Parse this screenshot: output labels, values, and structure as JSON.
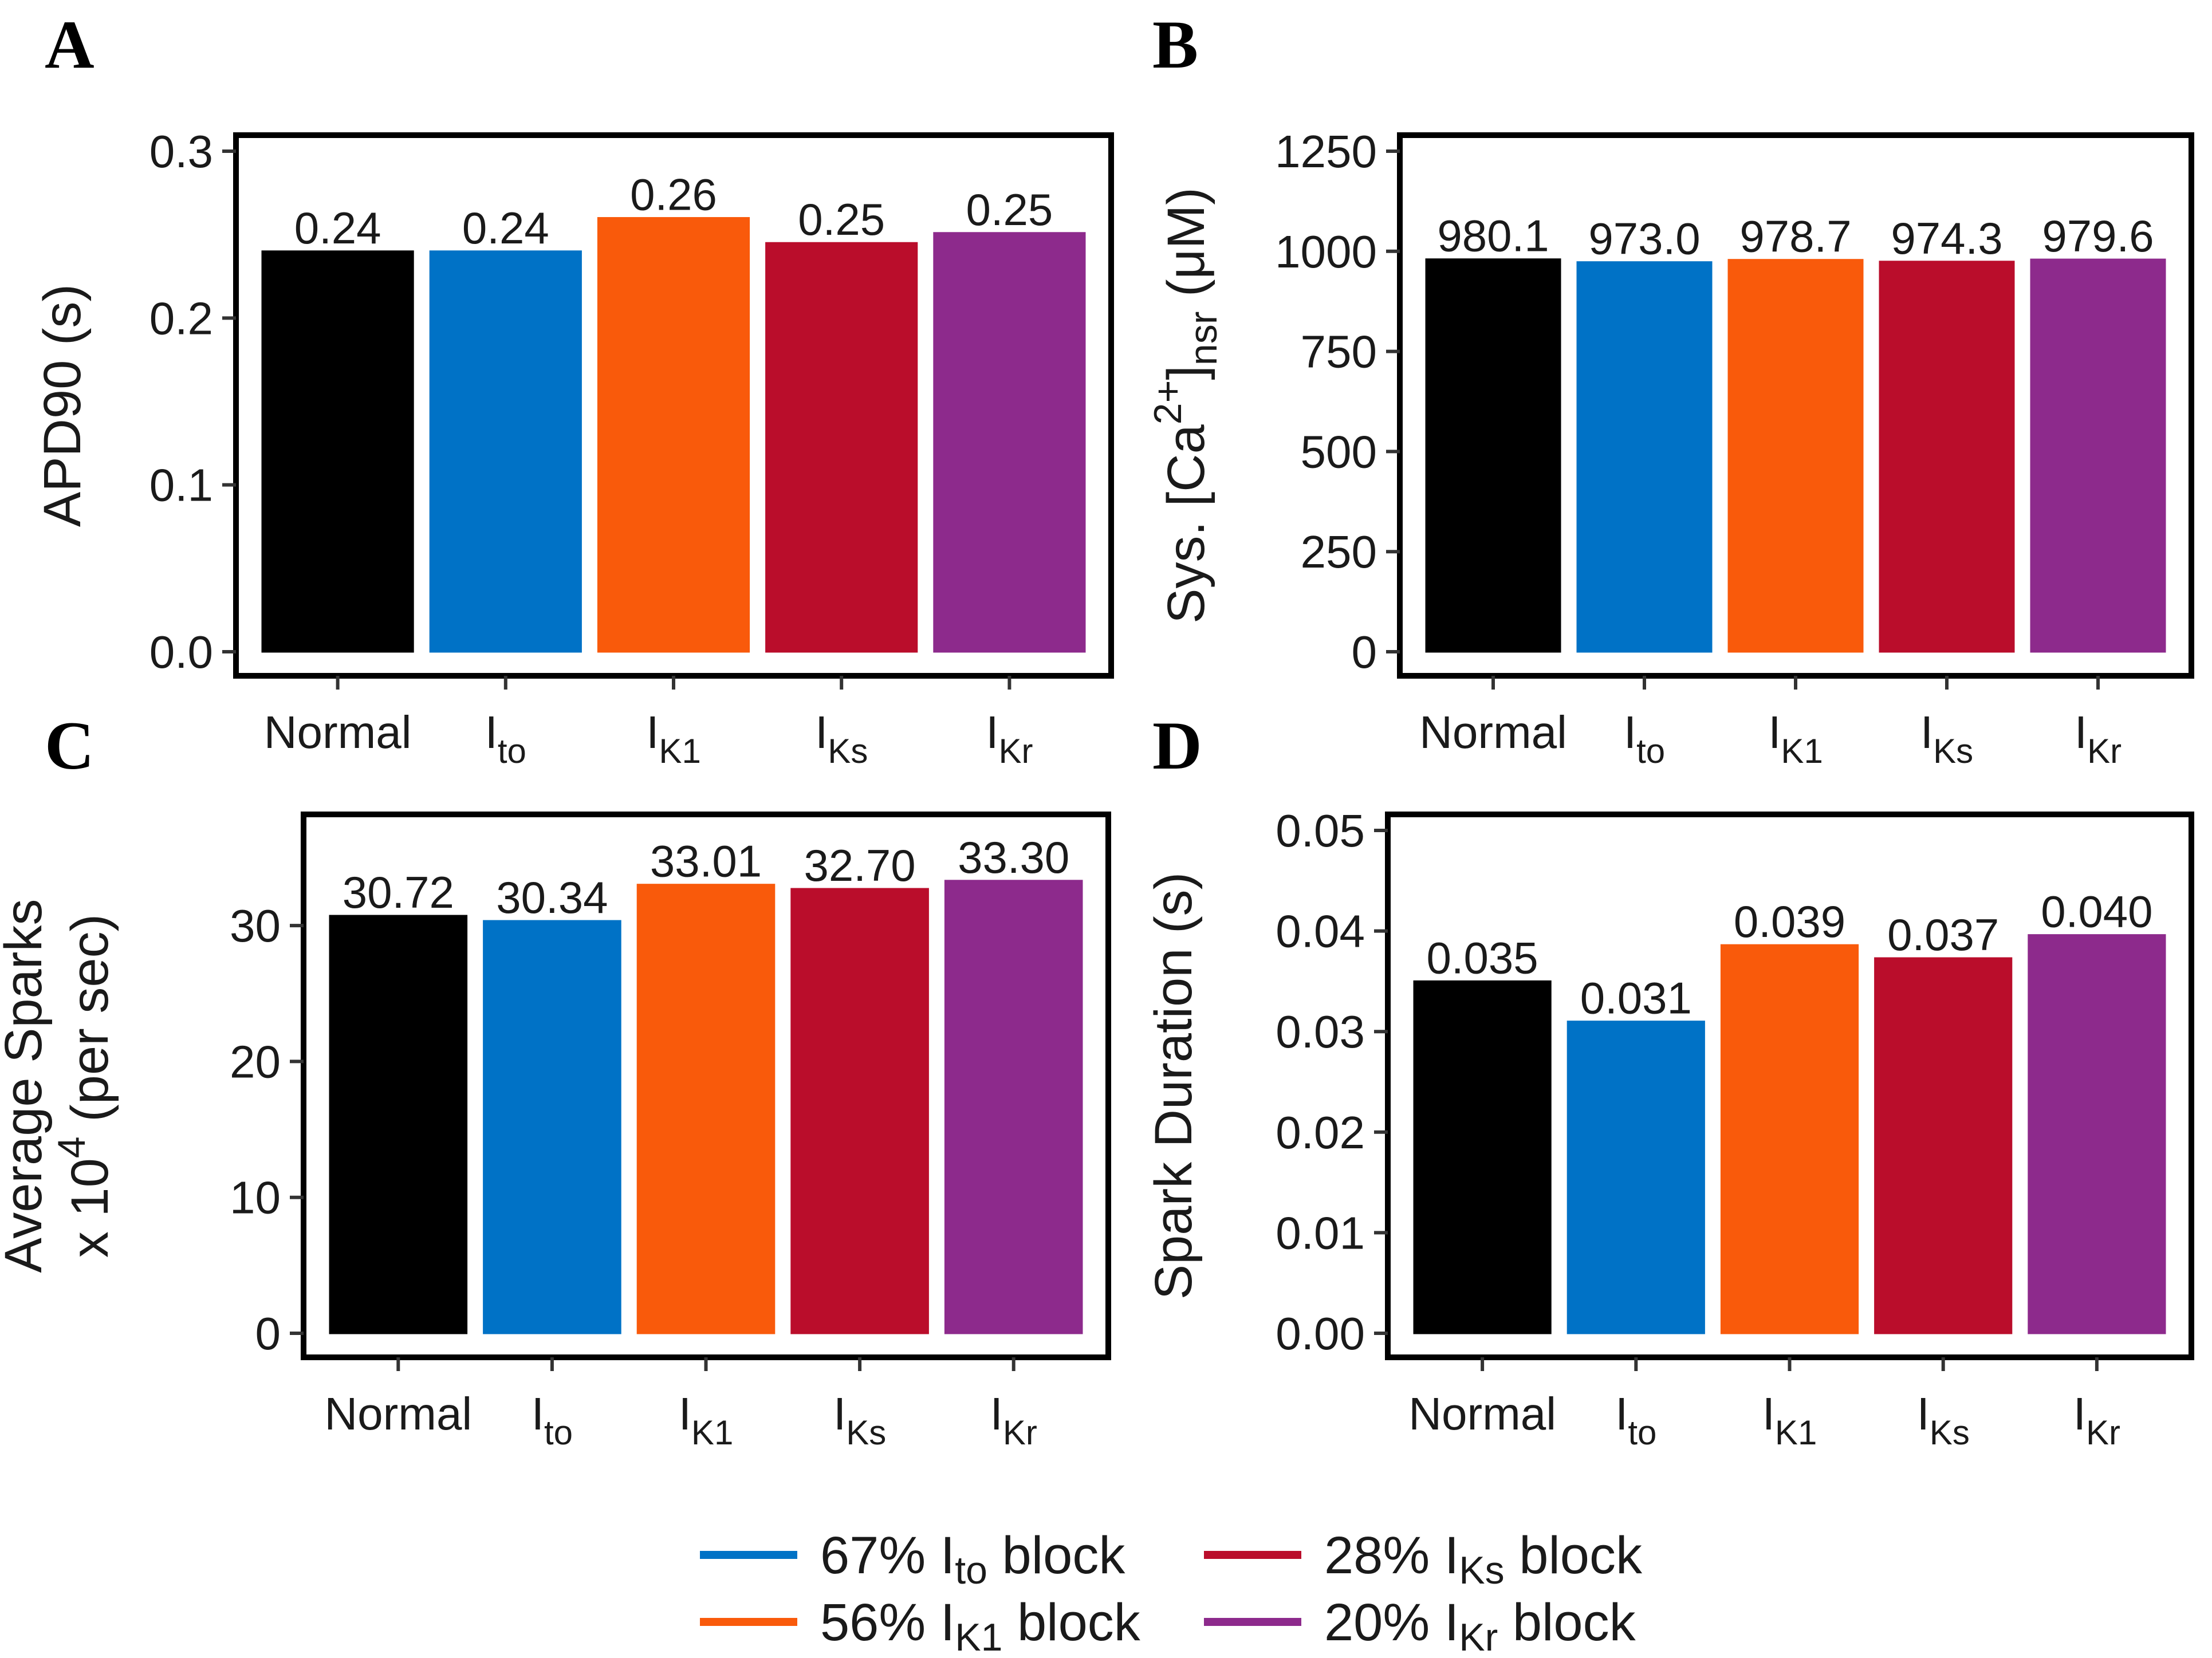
{
  "legend": [
    {
      "percent": "67%",
      "main": "I",
      "sub": "to",
      "tail": "block",
      "color": "#0072c6"
    },
    {
      "percent": "56%",
      "main": "I",
      "sub": "K1",
      "tail": "block",
      "color": "#f95a0b"
    },
    {
      "percent": "28%",
      "main": "I",
      "sub": "Ks",
      "tail": "block",
      "color": "#ba0d2b"
    },
    {
      "percent": "20%",
      "main": "I",
      "sub": "Kr",
      "tail": "block",
      "color": "#8d2a8c"
    }
  ],
  "chart_data": [
    {
      "panel": "A",
      "type": "bar",
      "categories": [
        {
          "main": "Normal",
          "sub": ""
        },
        {
          "main": "I",
          "sub": "to"
        },
        {
          "main": "I",
          "sub": "K1"
        },
        {
          "main": "I",
          "sub": "Ks"
        },
        {
          "main": "I",
          "sub": "Kr"
        }
      ],
      "values": [
        0.24,
        0.24,
        0.26,
        0.245,
        0.251
      ],
      "value_labels": [
        "0.24",
        "0.24",
        "0.26",
        "0.25",
        "0.25"
      ],
      "colors": [
        "#000000",
        "#0072c6",
        "#f95a0b",
        "#ba0d2b",
        "#8d2a8c"
      ],
      "ylabel": {
        "lines": [
          [
            {
              "t": "APD90 (s)"
            }
          ]
        ]
      },
      "ylim": [
        0,
        0.3
      ],
      "yticks": [
        0.0,
        0.1,
        0.2,
        0.3
      ],
      "ytick_labels": [
        "0.0",
        "0.1",
        "0.2",
        "0.3"
      ]
    },
    {
      "panel": "B",
      "type": "bar",
      "categories": [
        {
          "main": "Normal",
          "sub": ""
        },
        {
          "main": "I",
          "sub": "to"
        },
        {
          "main": "I",
          "sub": "K1"
        },
        {
          "main": "I",
          "sub": "Ks"
        },
        {
          "main": "I",
          "sub": "Kr"
        }
      ],
      "values": [
        980.1,
        973.0,
        978.7,
        974.3,
        979.6
      ],
      "value_labels": [
        "980.1",
        "973.0",
        "978.7",
        "974.3",
        "979.6"
      ],
      "colors": [
        "#000000",
        "#0072c6",
        "#f95a0b",
        "#ba0d2b",
        "#8d2a8c"
      ],
      "ylabel": {
        "lines": [
          [
            {
              "t": "Sys. [Ca"
            },
            {
              "t": "2+",
              "s": "sup"
            },
            {
              "t": "]"
            },
            {
              "t": "nsr",
              "s": "sub"
            },
            {
              "t": " (μM)"
            }
          ]
        ]
      },
      "ylim": [
        0,
        1250
      ],
      "yticks": [
        0,
        250,
        500,
        750,
        1000,
        1250
      ],
      "ytick_labels": [
        "0",
        "250",
        "500",
        "750",
        "1000",
        "1250"
      ]
    },
    {
      "panel": "C",
      "type": "bar",
      "categories": [
        {
          "main": "Normal",
          "sub": ""
        },
        {
          "main": "I",
          "sub": "to"
        },
        {
          "main": "I",
          "sub": "K1"
        },
        {
          "main": "I",
          "sub": "Ks"
        },
        {
          "main": "I",
          "sub": "Kr"
        }
      ],
      "values": [
        30.72,
        30.34,
        33.01,
        32.7,
        33.3
      ],
      "value_labels": [
        "30.72",
        "30.34",
        "33.01",
        "32.70",
        "33.30"
      ],
      "colors": [
        "#000000",
        "#0072c6",
        "#f95a0b",
        "#ba0d2b",
        "#8d2a8c"
      ],
      "ylabel": {
        "lines": [
          [
            {
              "t": "Average Sparks"
            }
          ],
          [
            {
              "t": "x 10"
            },
            {
              "t": "4",
              "s": "sup"
            },
            {
              "t": " (per sec)"
            }
          ]
        ]
      },
      "ylim": [
        0,
        37
      ],
      "yticks": [
        0,
        10,
        20,
        30
      ],
      "ytick_labels": [
        "0",
        "10",
        "20",
        "30"
      ]
    },
    {
      "panel": "D",
      "type": "bar",
      "categories": [
        {
          "main": "Normal",
          "sub": ""
        },
        {
          "main": "I",
          "sub": "to"
        },
        {
          "main": "I",
          "sub": "K1"
        },
        {
          "main": "I",
          "sub": "Ks"
        },
        {
          "main": "I",
          "sub": "Kr"
        }
      ],
      "values": [
        0.035,
        0.031,
        0.0386,
        0.0373,
        0.0396
      ],
      "value_labels": [
        "0.035",
        "0.031",
        "0.039",
        "0.037",
        "0.040"
      ],
      "colors": [
        "#000000",
        "#0072c6",
        "#f95a0b",
        "#ba0d2b",
        "#8d2a8c"
      ],
      "ylabel": {
        "lines": [
          [
            {
              "t": "Spark Duration (s)"
            }
          ]
        ]
      },
      "ylim": [
        0,
        0.05
      ],
      "yticks": [
        0.0,
        0.01,
        0.02,
        0.03,
        0.04,
        0.05
      ],
      "ytick_labels": [
        "0.00",
        "0.01",
        "0.02",
        "0.03",
        "0.04",
        "0.05"
      ]
    }
  ]
}
